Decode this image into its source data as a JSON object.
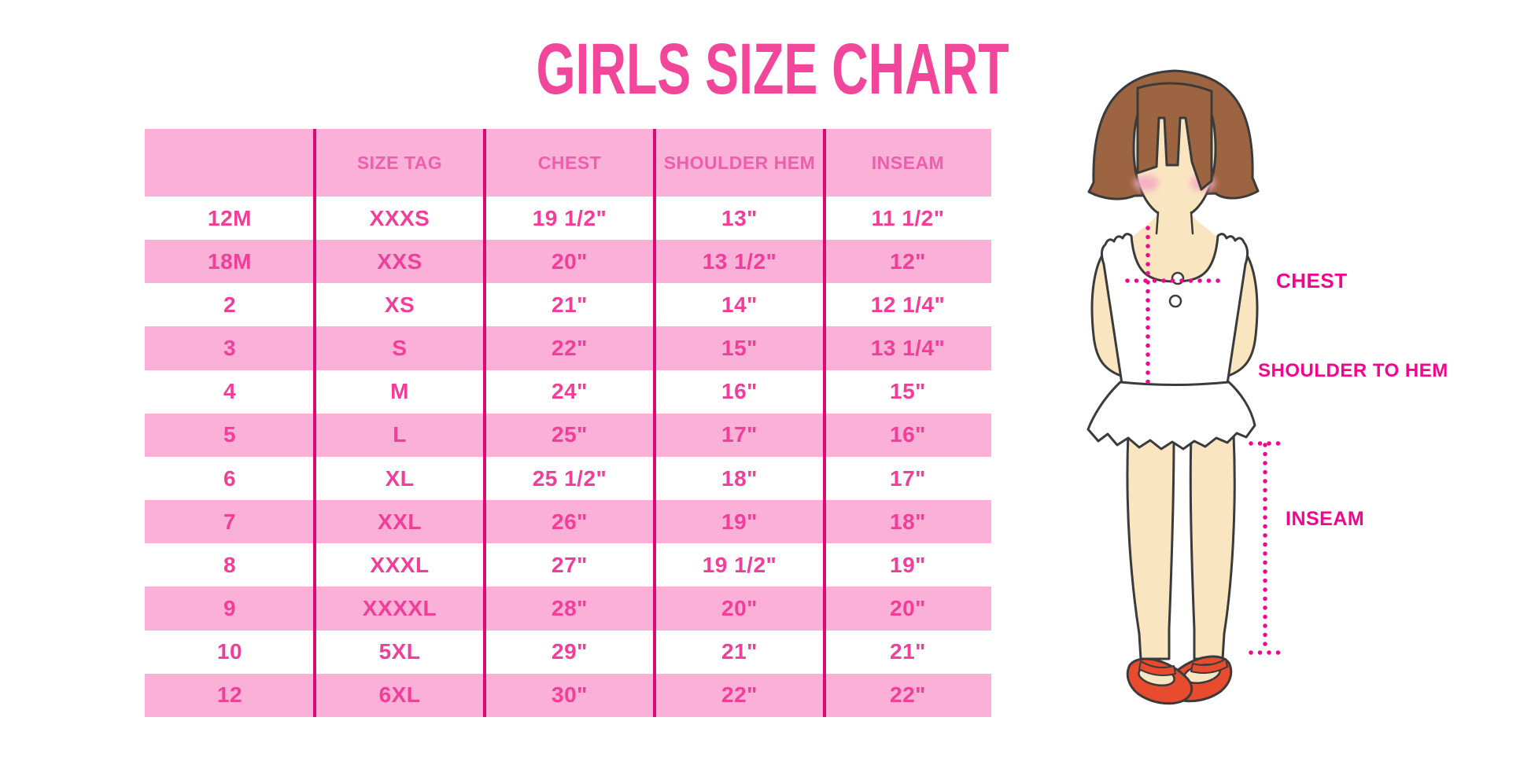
{
  "title": "GIRLS SIZE CHART",
  "chart_data": {
    "type": "table",
    "title": "GIRLS SIZE CHART",
    "columns": [
      "",
      "SIZE TAG",
      "CHEST",
      "SHOULDER HEM",
      "INSEAM"
    ],
    "rows": [
      [
        "12M",
        "XXXS",
        "19 1/2\"",
        "13\"",
        "11 1/2\""
      ],
      [
        "18M",
        "XXS",
        "20\"",
        "13 1/2\"",
        "12\""
      ],
      [
        "2",
        "XS",
        "21\"",
        "14\"",
        "12 1/4\""
      ],
      [
        "3",
        "S",
        "22\"",
        "15\"",
        "13 1/4\""
      ],
      [
        "4",
        "M",
        "24\"",
        "16\"",
        "15\""
      ],
      [
        "5",
        "L",
        "25\"",
        "17\"",
        "16\""
      ],
      [
        "6",
        "XL",
        "25 1/2\"",
        "18\"",
        "17\""
      ],
      [
        "7",
        "XXL",
        "26\"",
        "19\"",
        "18\""
      ],
      [
        "8",
        "XXXL",
        "27\"",
        "19 1/2\"",
        "19\""
      ],
      [
        "9",
        "XXXXL",
        "28\"",
        "20\"",
        "20\""
      ],
      [
        "10",
        "5XL",
        "29\"",
        "21\"",
        "21\""
      ],
      [
        "12",
        "6XL",
        "30\"",
        "22\"",
        "22\""
      ]
    ],
    "row_striping": "header pink; data rows alternate white then pink",
    "legend_position": "none"
  },
  "figure": {
    "chest_label": "CHEST",
    "shoulder_label": "SHOULDER TO HEM",
    "inseam_label": "INSEAM"
  },
  "colors": {
    "title_pink": "#F2469B",
    "row_pink": "#FBB0D8",
    "divider_magenta": "#DB0A73",
    "cell_text_pink": "#F23E98",
    "header_text_pink": "#EE5FAB",
    "label_magenta": "#F2068E",
    "hair_brown": "#9C6440",
    "skin": "#FAE5C1",
    "blush": "#F4A9C0",
    "shoe_red": "#E94B2E",
    "outline": "#3B3B3B"
  }
}
